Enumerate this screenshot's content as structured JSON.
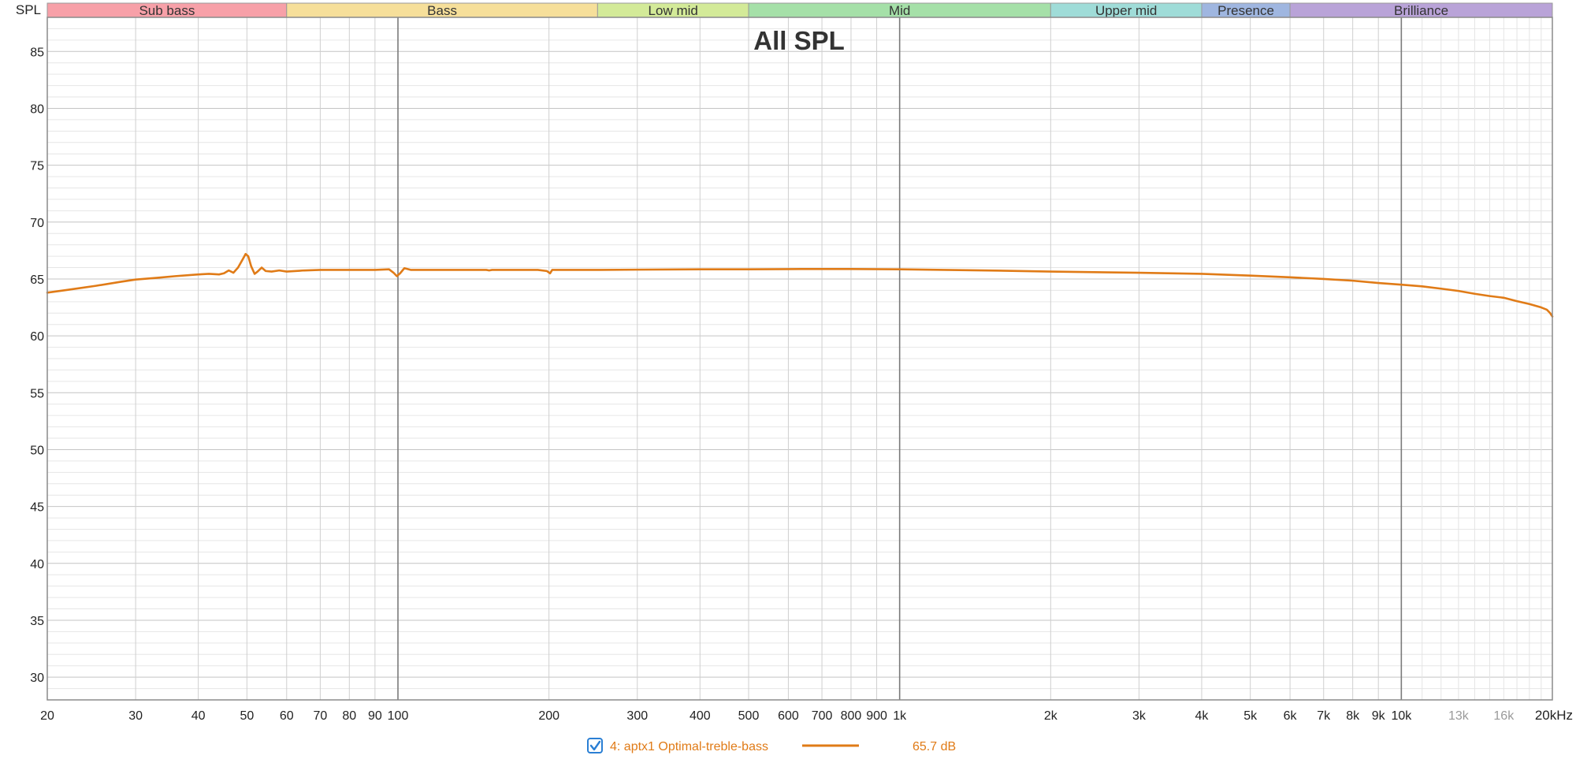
{
  "chart_data": {
    "type": "line",
    "title": "All SPL",
    "ylabel": "SPL",
    "x_unit_label": "20kHz",
    "x_scale": "log",
    "xlim": [
      20,
      20000
    ],
    "ylim": [
      28,
      88
    ],
    "grid": true,
    "bands": [
      {
        "name": "Sub bass",
        "from": 20,
        "to": 60,
        "color": "#f7a0a8"
      },
      {
        "name": "Bass",
        "from": 60,
        "to": 250,
        "color": "#f6df9a"
      },
      {
        "name": "Low mid",
        "from": 250,
        "to": 500,
        "color": "#d3ea98"
      },
      {
        "name": "Mid",
        "from": 500,
        "to": 2000,
        "color": "#a5e0a8"
      },
      {
        "name": "Upper mid",
        "from": 2000,
        "to": 4000,
        "color": "#9fdcd8"
      },
      {
        "name": "Presence",
        "from": 4000,
        "to": 6000,
        "color": "#9fb6e0"
      },
      {
        "name": "Brilliance",
        "from": 6000,
        "to": 20000,
        "color": "#b9a3d8"
      }
    ],
    "y_ticks": [
      30,
      35,
      40,
      45,
      50,
      55,
      60,
      65,
      70,
      75,
      80,
      85
    ],
    "x_ticks": [
      {
        "v": 20,
        "label": "20"
      },
      {
        "v": 30,
        "label": "30"
      },
      {
        "v": 40,
        "label": "40"
      },
      {
        "v": 50,
        "label": "50"
      },
      {
        "v": 60,
        "label": "60"
      },
      {
        "v": 70,
        "label": "70"
      },
      {
        "v": 80,
        "label": "80"
      },
      {
        "v": 90,
        "label": "90"
      },
      {
        "v": 100,
        "label": "100"
      },
      {
        "v": 200,
        "label": "200"
      },
      {
        "v": 300,
        "label": "300"
      },
      {
        "v": 400,
        "label": "400"
      },
      {
        "v": 500,
        "label": "500"
      },
      {
        "v": 600,
        "label": "600"
      },
      {
        "v": 700,
        "label": "700"
      },
      {
        "v": 800,
        "label": "800"
      },
      {
        "v": 900,
        "label": "900"
      },
      {
        "v": 1000,
        "label": "1k"
      },
      {
        "v": 2000,
        "label": "2k"
      },
      {
        "v": 3000,
        "label": "3k"
      },
      {
        "v": 4000,
        "label": "4k"
      },
      {
        "v": 5000,
        "label": "5k"
      },
      {
        "v": 6000,
        "label": "6k"
      },
      {
        "v": 7000,
        "label": "7k"
      },
      {
        "v": 8000,
        "label": "8k"
      },
      {
        "v": 9000,
        "label": "9k"
      },
      {
        "v": 10000,
        "label": "10k"
      },
      {
        "v": 13000,
        "label": "13k",
        "dim": true
      },
      {
        "v": 16000,
        "label": "16k",
        "dim": true
      }
    ],
    "series": [
      {
        "name": "4: aptx1 Optimal-treble-bass",
        "color": "#e07b17",
        "points": [
          [
            20,
            63.8
          ],
          [
            22,
            64.05
          ],
          [
            25,
            64.4
          ],
          [
            28,
            64.75
          ],
          [
            30,
            64.95
          ],
          [
            33,
            65.1
          ],
          [
            36,
            65.25
          ],
          [
            40,
            65.4
          ],
          [
            42,
            65.45
          ],
          [
            44,
            65.4
          ],
          [
            45,
            65.5
          ],
          [
            46,
            65.75
          ],
          [
            47,
            65.55
          ],
          [
            48,
            66.0
          ],
          [
            49,
            66.7
          ],
          [
            49.7,
            67.2
          ],
          [
            50.3,
            67.0
          ],
          [
            51,
            66.1
          ],
          [
            51.8,
            65.45
          ],
          [
            52.5,
            65.65
          ],
          [
            53.5,
            66.0
          ],
          [
            54.5,
            65.7
          ],
          [
            56,
            65.65
          ],
          [
            58,
            65.75
          ],
          [
            60,
            65.65
          ],
          [
            65,
            65.75
          ],
          [
            70,
            65.8
          ],
          [
            80,
            65.8
          ],
          [
            90,
            65.8
          ],
          [
            96,
            65.85
          ],
          [
            98,
            65.55
          ],
          [
            99.5,
            65.25
          ],
          [
            101,
            65.5
          ],
          [
            103,
            65.95
          ],
          [
            106,
            65.8
          ],
          [
            120,
            65.8
          ],
          [
            150,
            65.8
          ],
          [
            152,
            65.75
          ],
          [
            154,
            65.8
          ],
          [
            190,
            65.8
          ],
          [
            198,
            65.7
          ],
          [
            201,
            65.5
          ],
          [
            203,
            65.8
          ],
          [
            250,
            65.8
          ],
          [
            300,
            65.82
          ],
          [
            400,
            65.85
          ],
          [
            500,
            65.85
          ],
          [
            600,
            65.87
          ],
          [
            700,
            65.88
          ],
          [
            800,
            65.88
          ],
          [
            1000,
            65.85
          ],
          [
            1500,
            65.75
          ],
          [
            2000,
            65.65
          ],
          [
            3000,
            65.55
          ],
          [
            4000,
            65.45
          ],
          [
            5000,
            65.3
          ],
          [
            6000,
            65.15
          ],
          [
            7000,
            65.0
          ],
          [
            8000,
            64.85
          ],
          [
            9000,
            64.65
          ],
          [
            10000,
            64.5
          ],
          [
            11000,
            64.35
          ],
          [
            12000,
            64.15
          ],
          [
            13000,
            63.95
          ],
          [
            14000,
            63.7
          ],
          [
            15000,
            63.5
          ],
          [
            16000,
            63.35
          ],
          [
            17000,
            63.05
          ],
          [
            18000,
            62.8
          ],
          [
            19000,
            62.5
          ],
          [
            19500,
            62.3
          ],
          [
            19800,
            62.0
          ],
          [
            20000,
            61.7
          ]
        ]
      }
    ]
  },
  "legend": {
    "checked": true,
    "entries": [
      {
        "name": "4: aptx1 Optimal-treble-bass",
        "value": "65.7 dB",
        "color": "#e07b17"
      }
    ]
  }
}
